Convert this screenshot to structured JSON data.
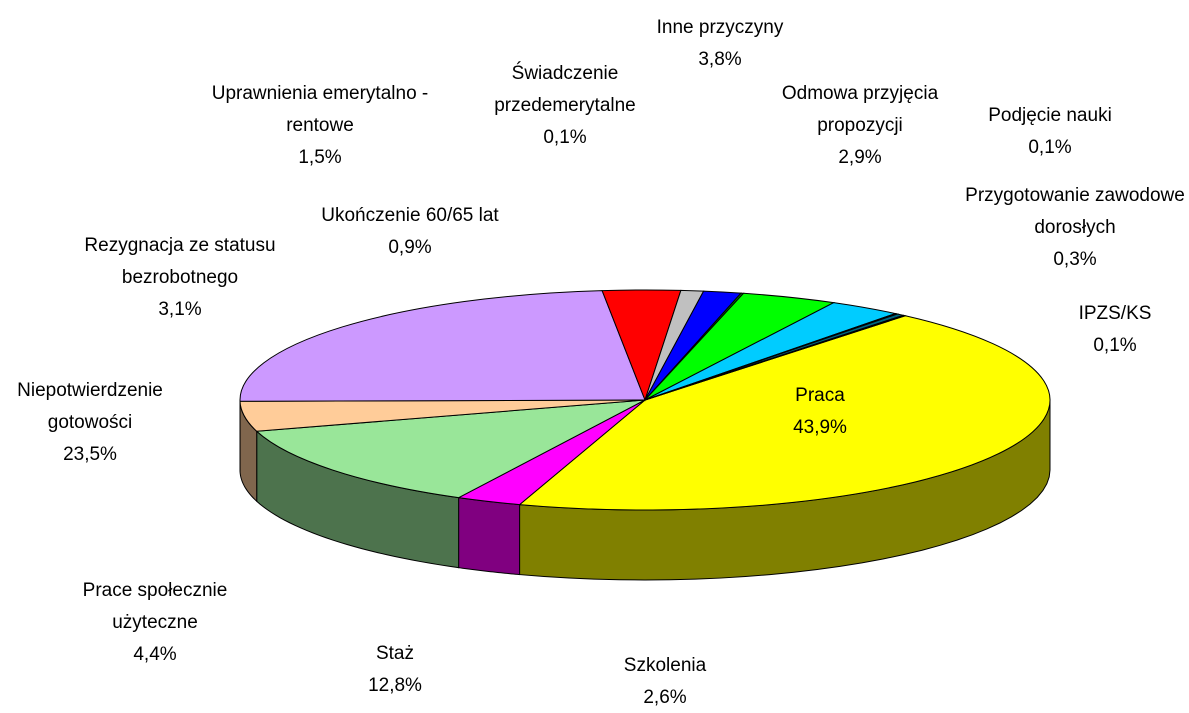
{
  "chart_data": {
    "type": "pie3d",
    "categories": [
      "Praca",
      "Szkolenia",
      "Staż",
      "Prace społecznie użyteczne",
      "Niepotwierdzenie gotowości",
      "Rezygnacja ze statusu bezrobotnego",
      "Ukończenie 60/65 lat",
      "Uprawnienia emerytalno - rentowe",
      "Świadczenie przedemerytalne",
      "Inne przyczyny",
      "Odmowa przyjęcia propozycji",
      "Podjęcie nauki",
      "Przygotowanie zawodowe dorosłych",
      "IPZS/KS"
    ],
    "values": [
      43.9,
      2.6,
      12.8,
      4.4,
      23.5,
      3.1,
      0.9,
      1.5,
      0.1,
      3.8,
      2.9,
      0.1,
      0.3,
      0.1
    ],
    "value_labels": [
      "43,9%",
      "2,6%",
      "12,8%",
      "4,4%",
      "23,5%",
      "3,1%",
      "0,9%",
      "1,5%",
      "0,1%",
      "3,8%",
      "2,9%",
      "0,1%",
      "0,3%",
      "0,1%"
    ],
    "colors": [
      "#ffff00",
      "#ff00ff",
      "#99e699",
      "#ffcc99",
      "#cc99ff",
      "#ff0000",
      "#c0c0c0",
      "#0000ff",
      "#008000",
      "#00ff00",
      "#00ccff",
      "#000080",
      "#006680",
      "#000000"
    ]
  }
}
